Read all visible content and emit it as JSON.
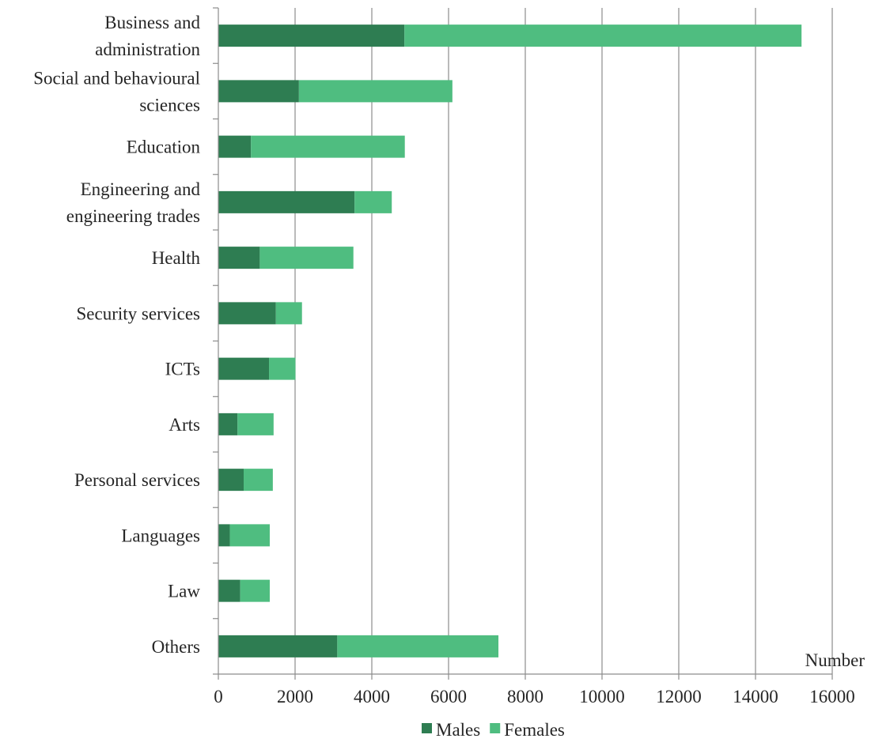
{
  "chart_data": {
    "type": "bar",
    "orientation": "horizontal",
    "stacked": true,
    "categories": [
      "Business and administration",
      "Social and behavioural sciences",
      "Education",
      "Engineering and engineering trades",
      "Health",
      "Security services",
      "ICTs",
      "Arts",
      "Personal services",
      "Languages",
      "Law",
      "Others"
    ],
    "category_label_lines": [
      [
        "Business and",
        "administration"
      ],
      [
        "Social and behavioural",
        "sciences"
      ],
      [
        "Education"
      ],
      [
        "Engineering and",
        "engineering trades"
      ],
      [
        "Health"
      ],
      [
        "Security services"
      ],
      [
        "ICTs"
      ],
      [
        "Arts"
      ],
      [
        "Personal services"
      ],
      [
        "Languages"
      ],
      [
        "Law"
      ],
      [
        "Others"
      ]
    ],
    "series": [
      {
        "name": "Males",
        "color": "#2e7d52",
        "values": [
          4850,
          2100,
          850,
          3550,
          1080,
          1500,
          1320,
          500,
          660,
          300,
          570,
          3100
        ]
      },
      {
        "name": "Females",
        "color": "#4fbd80",
        "values": [
          10350,
          4000,
          4010,
          970,
          2440,
          680,
          690,
          940,
          760,
          1040,
          770,
          4200
        ]
      }
    ],
    "xlabel": "Number",
    "xlim": [
      0,
      16000
    ],
    "xticks": [
      0,
      2000,
      4000,
      6000,
      8000,
      10000,
      12000,
      14000,
      16000
    ],
    "grid": "vertical",
    "legend_position": "bottom"
  }
}
